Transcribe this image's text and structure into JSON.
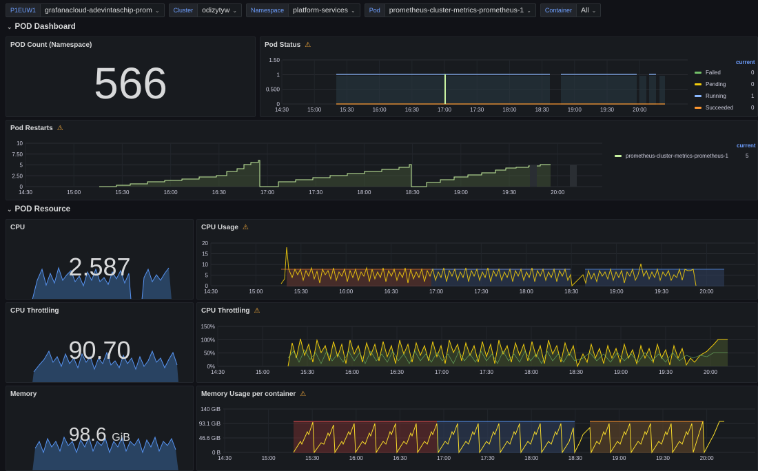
{
  "vars": [
    {
      "label": "P1EUW1",
      "value": "grafanacloud-adevintaschip-prom"
    },
    {
      "label": "Cluster",
      "value": "odizytyw"
    },
    {
      "label": "Namespace",
      "value": "platform-services"
    },
    {
      "label": "Pod",
      "value": "prometheus-cluster-metrics-prometheus-1"
    },
    {
      "label": "Container",
      "value": "All"
    }
  ],
  "rows": {
    "dashboard": "POD Dashboard",
    "resource": "POD Resource"
  },
  "panels": {
    "pod_count": {
      "title": "POD Count (Namespace)",
      "value": "566"
    },
    "pod_status": {
      "title": "Pod Status",
      "yticks": [
        "1.50",
        "1",
        "0.500",
        "0"
      ],
      "xticks": [
        "14:30",
        "15:00",
        "15:30",
        "16:00",
        "16:30",
        "17:00",
        "17:30",
        "18:00",
        "18:30",
        "19:00",
        "19:30",
        "20:00"
      ],
      "legend_header": "current",
      "legend": [
        {
          "name": "Failed",
          "value": "0",
          "color": "#73bf69"
        },
        {
          "name": "Pending",
          "value": "0",
          "color": "#f2cc0c"
        },
        {
          "name": "Running",
          "value": "1",
          "color": "#8ab8ff"
        },
        {
          "name": "Succeeded",
          "value": "0",
          "color": "#ff9830"
        }
      ]
    },
    "pod_restarts": {
      "title": "Pod Restarts",
      "yticks": [
        "10",
        "7.50",
        "5",
        "2.50",
        "0"
      ],
      "xticks": [
        "14:30",
        "15:00",
        "15:30",
        "16:00",
        "16:30",
        "17:00",
        "17:30",
        "18:00",
        "18:30",
        "19:00",
        "19:30",
        "20:00"
      ],
      "legend_header": "current",
      "legend": [
        {
          "name": "prometheus-cluster-metrics-prometheus-1",
          "value": "5",
          "color": "#c8f2a0"
        }
      ]
    },
    "cpu": {
      "title": "CPU",
      "value": "2.587"
    },
    "cpu_usage": {
      "title": "CPU Usage",
      "yticks": [
        "20",
        "15",
        "10",
        "5",
        "0"
      ],
      "xticks": [
        "14:30",
        "15:00",
        "15:30",
        "16:00",
        "16:30",
        "17:00",
        "17:30",
        "18:00",
        "18:30",
        "19:00",
        "19:30",
        "20:00"
      ]
    },
    "cpu_throttling_stat": {
      "title": "CPU Throttling",
      "value": "90.70"
    },
    "cpu_throttling": {
      "title": "CPU Throttling",
      "yticks": [
        "150%",
        "100%",
        "50%",
        "0%"
      ],
      "xticks": [
        "14:30",
        "15:00",
        "15:30",
        "16:00",
        "16:30",
        "17:00",
        "17:30",
        "18:00",
        "18:30",
        "19:00",
        "19:30",
        "20:00"
      ]
    },
    "memory": {
      "title": "Memory",
      "value": "98.6",
      "unit": "GiB"
    },
    "memory_usage": {
      "title": "Memory Usage per container",
      "yticks": [
        "140 GiB",
        "93.1 GiB",
        "46.6 GiB",
        "0 B"
      ],
      "xticks": [
        "14:30",
        "15:00",
        "15:30",
        "16:00",
        "16:30",
        "17:00",
        "17:30",
        "18:00",
        "18:30",
        "19:00",
        "19:30",
        "20:00"
      ]
    }
  },
  "colors": {
    "bg": "#111217",
    "panel": "#181b1f",
    "accent": "#6e9fff",
    "warning": "#f2a93b"
  },
  "icons": {
    "warning": "warning-icon",
    "collapse": "chevron-down-icon",
    "dropdown": "chevron-down-icon"
  }
}
